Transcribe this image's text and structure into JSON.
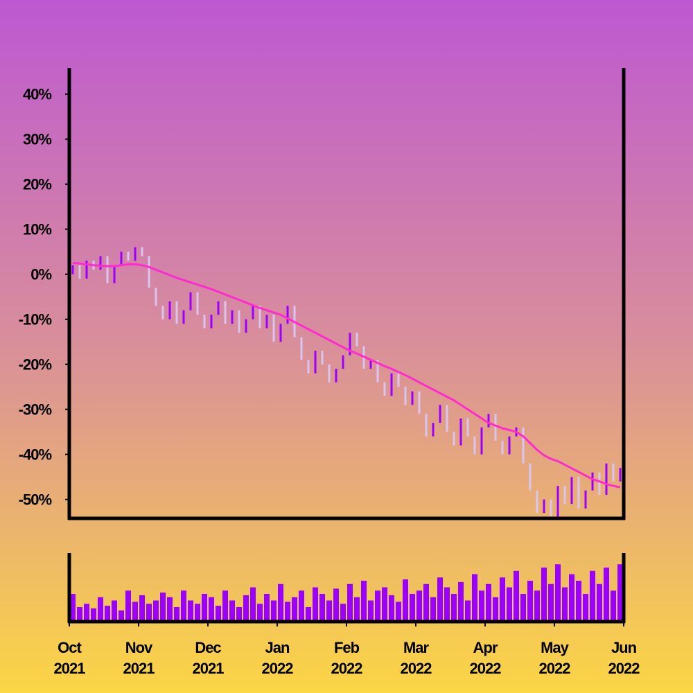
{
  "chart_data": {
    "type": "candlestick",
    "x": [
      0.05,
      0.15,
      0.25,
      0.35,
      0.45,
      0.55,
      0.65,
      0.75,
      0.85,
      0.95,
      1.05,
      1.15,
      1.25,
      1.35,
      1.45,
      1.55,
      1.65,
      1.75,
      1.85,
      1.95,
      2.05,
      2.15,
      2.25,
      2.35,
      2.45,
      2.55,
      2.65,
      2.75,
      2.85,
      2.95,
      3.05,
      3.15,
      3.25,
      3.35,
      3.45,
      3.55,
      3.65,
      3.75,
      3.85,
      3.95,
      4.05,
      4.15,
      4.25,
      4.35,
      4.45,
      4.55,
      4.65,
      4.75,
      4.85,
      4.95,
      5.05,
      5.15,
      5.25,
      5.35,
      5.45,
      5.55,
      5.65,
      5.75,
      5.85,
      5.95,
      6.05,
      6.15,
      6.25,
      6.35,
      6.45,
      6.55,
      6.65,
      6.75,
      6.85,
      6.95,
      7.05,
      7.15,
      7.25,
      7.35,
      7.45,
      7.55,
      7.65,
      7.75,
      7.85,
      7.95
    ],
    "open": [
      0,
      2,
      -1,
      3,
      1,
      4,
      -2,
      2,
      5,
      3,
      6,
      4,
      -3,
      -7,
      -10,
      -6,
      -11,
      -8,
      -4,
      -9,
      -12,
      -9,
      -6,
      -11,
      -8,
      -13,
      -10,
      -7,
      -12,
      -9,
      -15,
      -11,
      -7,
      -14,
      -19,
      -22,
      -17,
      -20,
      -24,
      -21,
      -18,
      -13,
      -16,
      -21,
      -19,
      -24,
      -27,
      -22,
      -25,
      -29,
      -26,
      -31,
      -36,
      -33,
      -29,
      -35,
      -38,
      -32,
      -36,
      -40,
      -34,
      -31,
      -37,
      -40,
      -36,
      -34,
      -42,
      -48,
      -53,
      -50,
      -54,
      -47,
      -51,
      -45,
      -52,
      -48,
      -44,
      -49,
      -42,
      -46
    ],
    "close": [
      2,
      -1,
      3,
      1,
      4,
      -2,
      2,
      5,
      3,
      6,
      4,
      -3,
      -7,
      -10,
      -6,
      -11,
      -8,
      -4,
      -9,
      -12,
      -9,
      -6,
      -11,
      -8,
      -13,
      -10,
      -7,
      -12,
      -9,
      -15,
      -11,
      -7,
      -14,
      -19,
      -22,
      -17,
      -20,
      -24,
      -21,
      -18,
      -13,
      -16,
      -21,
      -19,
      -24,
      -27,
      -22,
      -25,
      -29,
      -26,
      -31,
      -36,
      -33,
      -29,
      -35,
      -38,
      -32,
      -36,
      -40,
      -34,
      -31,
      -37,
      -40,
      -36,
      -34,
      -42,
      -48,
      -53,
      -50,
      -54,
      -47,
      -51,
      -45,
      -52,
      -48,
      -44,
      -49,
      -42,
      -46,
      -43
    ],
    "moving_average": [
      2.5,
      2.4,
      2.2,
      2,
      1.9,
      1.8,
      1.8,
      2,
      2.2,
      2.2,
      2,
      1.6,
      1,
      0.4,
      -0.2,
      -0.8,
      -1.3,
      -1.8,
      -2.3,
      -2.8,
      -3.3,
      -3.9,
      -4.5,
      -5.1,
      -5.7,
      -6.3,
      -6.9,
      -7.5,
      -8,
      -8.5,
      -9,
      -9.8,
      -10.6,
      -11.4,
      -12.2,
      -13,
      -13.8,
      -14.6,
      -15.4,
      -16.2,
      -17,
      -17.6,
      -18.3,
      -19,
      -19.7,
      -20.4,
      -21,
      -21.7,
      -22.4,
      -23.2,
      -24,
      -24.8,
      -25.6,
      -26.4,
      -27.2,
      -28,
      -29,
      -30,
      -31,
      -32,
      -33,
      -33.6,
      -34.2,
      -34.6,
      -35,
      -36,
      -37.5,
      -39,
      -40.2,
      -41,
      -41.5,
      -42.3,
      -43.1,
      -43.9,
      -44.7,
      -45.5,
      -46,
      -46.6,
      -47,
      -47.3
    ],
    "volume": [
      40,
      20,
      25,
      18,
      35,
      22,
      30,
      15,
      45,
      28,
      38,
      25,
      30,
      42,
      35,
      20,
      45,
      30,
      25,
      40,
      35,
      22,
      45,
      30,
      20,
      38,
      50,
      25,
      40,
      30,
      55,
      28,
      35,
      45,
      20,
      50,
      40,
      30,
      48,
      25,
      55,
      35,
      60,
      30,
      45,
      50,
      38,
      28,
      62,
      40,
      45,
      55,
      35,
      65,
      50,
      40,
      58,
      30,
      70,
      45,
      55,
      35,
      65,
      50,
      75,
      40,
      60,
      45,
      80,
      55,
      85,
      50,
      70,
      60,
      40,
      75,
      55,
      80,
      45,
      85
    ],
    "up_color": "#9b00ff",
    "down_color": "#dcc4f0",
    "ma_color": "#ff2ad0",
    "volume_color": "#9b00ff",
    "xlim": [
      0,
      8
    ],
    "ylim": [
      -54.2,
      45.5
    ],
    "volume_lim": [
      0,
      100
    ],
    "yticks": [
      {
        "value": -50,
        "label": "-50%"
      },
      {
        "value": -40,
        "label": "-40%"
      },
      {
        "value": -30,
        "label": "-30%"
      },
      {
        "value": -20,
        "label": "-20%"
      },
      {
        "value": -10,
        "label": "-10%"
      },
      {
        "value": 0,
        "label": "0%"
      },
      {
        "value": 10,
        "label": "10%"
      },
      {
        "value": 20,
        "label": "20%"
      },
      {
        "value": 30,
        "label": "30%"
      },
      {
        "value": 40,
        "label": "40%"
      }
    ],
    "xticks": [
      {
        "value": 0,
        "label": "Oct 2021"
      },
      {
        "value": 1,
        "label": "Nov 2021"
      },
      {
        "value": 2,
        "label": "Dec 2021"
      },
      {
        "value": 3,
        "label": "Jan 2022"
      },
      {
        "value": 4,
        "label": "Feb 2022"
      },
      {
        "value": 5,
        "label": "Mar 2022"
      },
      {
        "value": 6,
        "label": "Apr 2022"
      },
      {
        "value": 7,
        "label": "May 2022"
      },
      {
        "value": 8,
        "label": "Jun 2022"
      }
    ]
  }
}
